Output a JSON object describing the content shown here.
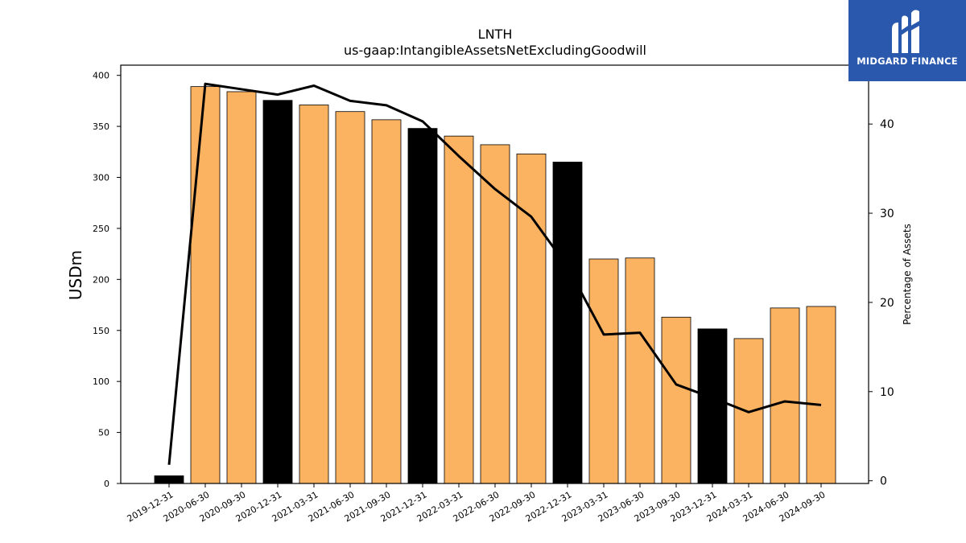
{
  "brand": {
    "name": "MIDGARD FINANCE",
    "bg_color": "#2a58ad"
  },
  "chart_data": {
    "type": "bar",
    "title": "LNTH",
    "subtitle": "us-gaap:IntangibleAssetsNetExcludingGoodwill",
    "ylabel": "USDm",
    "y2label": "Percentage of Assets",
    "ylim": [
      0,
      410
    ],
    "y2lim": [
      -0.3,
      46.6
    ],
    "yticks": [
      0,
      50,
      100,
      150,
      200,
      250,
      300,
      350,
      400
    ],
    "y2ticks": [
      0,
      10,
      20,
      30,
      40
    ],
    "categories": [
      "2019-12-31",
      "2020-06-30",
      "2020-09-30",
      "2020-12-31",
      "2021-03-31",
      "2021-06-30",
      "2021-09-30",
      "2021-12-31",
      "2022-03-31",
      "2022-06-30",
      "2022-09-30",
      "2022-12-31",
      "2023-03-31",
      "2023-06-30",
      "2023-09-30",
      "2023-12-31",
      "2024-03-31",
      "2024-06-30",
      "2024-09-30"
    ],
    "series": [
      {
        "type": "bar",
        "axis": "left",
        "values": [
          7.5,
          389,
          384,
          375.5,
          371,
          364.5,
          356.5,
          348,
          340.5,
          332,
          323,
          315,
          220,
          221,
          163,
          151.5,
          142,
          172,
          173.5
        ]
      },
      {
        "type": "line",
        "axis": "right",
        "color": "#000000",
        "values": [
          1.8,
          44.5,
          43.9,
          43.3,
          44.3,
          42.6,
          42.1,
          40.3,
          36.4,
          32.7,
          29.6,
          24.0,
          16.4,
          16.6,
          10.8,
          9.3,
          7.7,
          8.9,
          8.5
        ]
      }
    ],
    "bar_fill_colors": [
      "#000000",
      "#fbb362",
      "#fbb362",
      "#000000",
      "#fbb362",
      "#fbb362",
      "#fbb362",
      "#000000",
      "#fbb362",
      "#fbb362",
      "#fbb362",
      "#000000",
      "#fbb362",
      "#fbb362",
      "#fbb362",
      "#000000",
      "#fbb362",
      "#fbb362",
      "#fbb362"
    ],
    "grid": false,
    "legend": "none"
  }
}
